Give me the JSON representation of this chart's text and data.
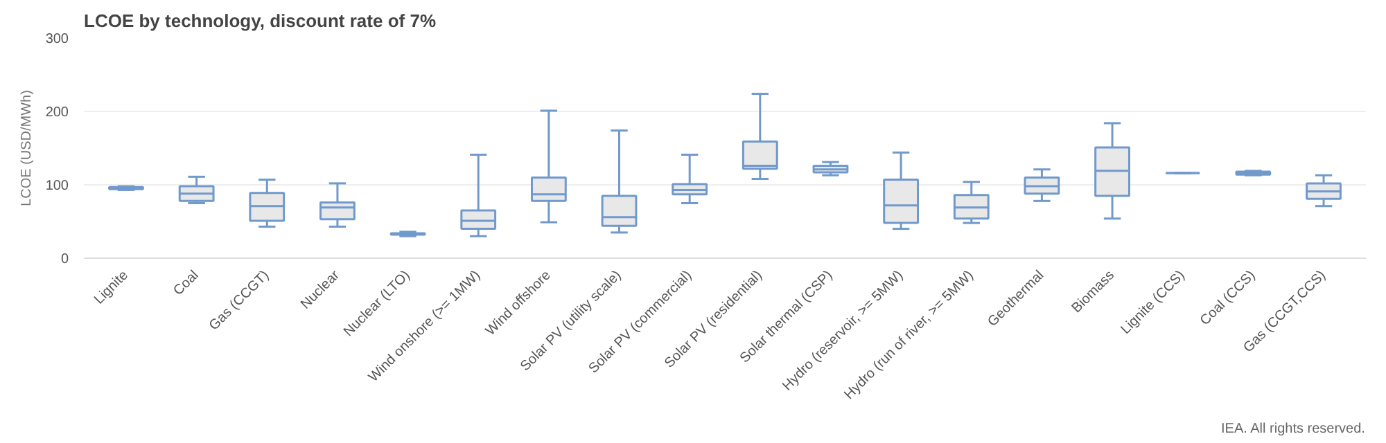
{
  "chart_data": {
    "type": "box",
    "title": "LCOE by technology, discount rate of 7%",
    "ylabel": "LCOE (USD/MWh)",
    "categories": [
      "Lignite",
      "Coal",
      "Gas (CCGT)",
      "Nuclear",
      "Nuclear (LTO)",
      "Wind onshore (>= 1MW)",
      "Wind offshore",
      "Solar PV (utility scale)",
      "Solar PV (commercial)",
      "Solar PV (residential)",
      "Solar thermal (CSP)",
      "Hydro (reservoir, >= 5MW)",
      "Hydro (run of river, >= 5MW)",
      "Geothermal",
      "Biomass",
      "Lignite (CCS)",
      "Coal (CCS)",
      "Gas (CCGT,CCS)"
    ],
    "color": "#7099cc",
    "boxes": [
      {
        "low": 93,
        "q1": 94,
        "median": 96,
        "q3": 97,
        "high": 98
      },
      {
        "low": 75,
        "q1": 78,
        "median": 88,
        "q3": 98,
        "high": 111
      },
      {
        "low": 43,
        "q1": 51,
        "median": 71,
        "q3": 89,
        "high": 107
      },
      {
        "low": 43,
        "q1": 53,
        "median": 69,
        "q3": 76,
        "high": 102
      },
      {
        "low": 30,
        "q1": 32,
        "median": 33,
        "q3": 34,
        "high": 36
      },
      {
        "low": 30,
        "q1": 40,
        "median": 51,
        "q3": 65,
        "high": 141
      },
      {
        "low": 49,
        "q1": 78,
        "median": 87,
        "q3": 110,
        "high": 201
      },
      {
        "low": 35,
        "q1": 44,
        "median": 56,
        "q3": 85,
        "high": 174
      },
      {
        "low": 75,
        "q1": 87,
        "median": 93,
        "q3": 101,
        "high": 141
      },
      {
        "low": 108,
        "q1": 122,
        "median": 126,
        "q3": 159,
        "high": 224
      },
      {
        "low": 113,
        "q1": 117,
        "median": 121,
        "q3": 126,
        "high": 131
      },
      {
        "low": 40,
        "q1": 48,
        "median": 72,
        "q3": 107,
        "high": 144
      },
      {
        "low": 48,
        "q1": 54,
        "median": 69,
        "q3": 86,
        "high": 104
      },
      {
        "low": 78,
        "q1": 88,
        "median": 98,
        "q3": 110,
        "high": 121
      },
      {
        "low": 54,
        "q1": 85,
        "median": 119,
        "q3": 151,
        "high": 184
      },
      {
        "low": 116,
        "q1": 116,
        "median": 116,
        "q3": 116,
        "high": 116
      },
      {
        "low": 113,
        "q1": 114,
        "median": 116,
        "q3": 118,
        "high": 119
      },
      {
        "low": 71,
        "q1": 81,
        "median": 91,
        "q3": 102,
        "high": 113
      }
    ],
    "ylim": [
      0,
      300
    ],
    "yticks": [
      0,
      100,
      200,
      300
    ],
    "grid": "y",
    "annotations": [
      "IEA. All rights reserved."
    ]
  }
}
